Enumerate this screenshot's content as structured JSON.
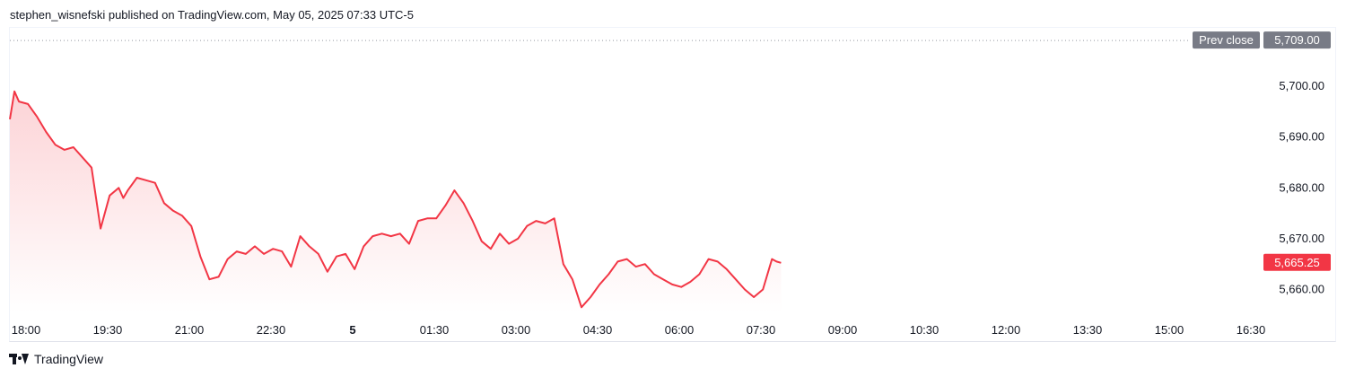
{
  "header": {
    "text": "stephen_wisnefski published on TradingView.com, May 05, 2025 07:33 UTC-5"
  },
  "footer": {
    "brand": "TradingView",
    "logo_icon": "tradingview-logo-icon"
  },
  "colors": {
    "line": "#f23645",
    "price_badge": "#f23645",
    "prev_close_badge": "#787b86",
    "axis_text": "#131722"
  },
  "chart_data": {
    "type": "area",
    "x_tick_labels": [
      "18:00",
      "19:30",
      "21:00",
      "22:30",
      "5",
      "01:30",
      "03:00",
      "04:30",
      "06:00",
      "07:30",
      "09:00",
      "10:30",
      "12:00",
      "13:30",
      "15:00",
      "16:30"
    ],
    "y_tick_labels": [
      "5,700.00",
      "5,690.00",
      "5,680.00",
      "5,670.00",
      "5,660.00"
    ],
    "y_ticks": [
      5700,
      5690,
      5680,
      5670,
      5660
    ],
    "ylim": [
      5655.5,
      5711.5
    ],
    "xlim": [
      "18:00",
      "17:40"
    ],
    "grid": false,
    "prev_close": {
      "label": "Prev close",
      "value_label": "5,709.00",
      "value": 5709.0
    },
    "last_price": {
      "value_label": "5,665.25",
      "value": 5665.25
    },
    "series": [
      {
        "x": [
          "18:00",
          "18:05",
          "18:10",
          "18:20",
          "18:30",
          "18:40",
          "18:50",
          "19:00",
          "19:10",
          "19:20",
          "19:30",
          "19:40",
          "19:50",
          "20:00",
          "20:05",
          "20:10",
          "20:20",
          "20:30",
          "20:40",
          "20:50",
          "21:00",
          "21:10",
          "21:20",
          "21:30",
          "21:40",
          "21:50",
          "22:00",
          "22:10",
          "22:20",
          "22:30",
          "22:40",
          "22:50",
          "23:00",
          "23:10",
          "23:20",
          "23:30",
          "23:40",
          "23:50",
          "00:00",
          "00:10",
          "00:20",
          "00:30",
          "00:40",
          "00:50",
          "01:00",
          "01:10",
          "01:20",
          "01:30",
          "01:40",
          "01:50",
          "02:00",
          "02:10",
          "02:20",
          "02:30",
          "02:40",
          "02:50",
          "03:00",
          "03:10",
          "03:20",
          "03:30",
          "03:40",
          "03:50",
          "04:00",
          "04:10",
          "04:20",
          "04:30",
          "04:40",
          "04:50",
          "05:00",
          "05:10",
          "05:20",
          "05:30",
          "05:40",
          "05:50",
          "06:00",
          "06:10",
          "06:20",
          "06:30",
          "06:40",
          "06:50",
          "07:00",
          "07:10",
          "07:20",
          "07:30",
          "07:40",
          "07:50",
          "08:00",
          "08:05",
          "08:10"
        ],
        "values": [
          5693.5,
          5699.0,
          5697.0,
          5696.5,
          5694.0,
          5691.0,
          5688.5,
          5687.5,
          5688.0,
          5686.0,
          5684.0,
          5672.0,
          5678.5,
          5680.0,
          5678.0,
          5679.5,
          5682.0,
          5681.5,
          5681.0,
          5677.0,
          5675.5,
          5674.5,
          5672.5,
          5666.5,
          5662.0,
          5662.5,
          5666.0,
          5667.5,
          5667.0,
          5668.5,
          5667.0,
          5668.0,
          5667.5,
          5664.5,
          5670.5,
          5668.5,
          5667.0,
          5663.5,
          5666.5,
          5667.0,
          5664.0,
          5668.5,
          5670.5,
          5671.0,
          5670.5,
          5671.0,
          5669.0,
          5673.5,
          5674.0,
          5674.0,
          5676.5,
          5679.5,
          5677.0,
          5673.5,
          5669.5,
          5668.0,
          5671.0,
          5669.0,
          5670.0,
          5672.5,
          5673.5,
          5673.0,
          5674.0,
          5665.0,
          5662.0,
          5656.5,
          5658.5,
          5661.0,
          5663.0,
          5665.5,
          5666.0,
          5664.5,
          5665.0,
          5663.0,
          5662.0,
          5661.0,
          5660.5,
          5661.5,
          5663.0,
          5666.0,
          5665.5,
          5664.0,
          5662.0,
          5660.0,
          5658.5,
          5660.0,
          5666.0,
          5665.5,
          5665.25
        ]
      }
    ]
  }
}
